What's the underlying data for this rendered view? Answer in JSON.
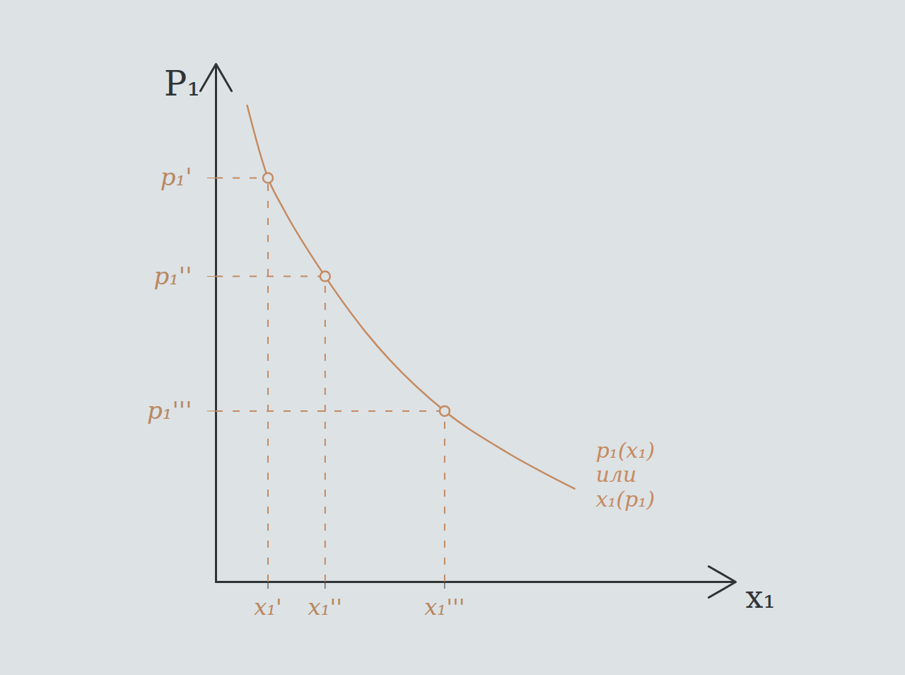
{
  "chart_data": {
    "type": "line",
    "x_label": "x₁",
    "y_label": "P₁",
    "xlim": [
      0,
      10
    ],
    "ylim": [
      0,
      10
    ],
    "xticks": [
      {
        "value": 1.0,
        "label": "x₁'"
      },
      {
        "value": 2.1,
        "label": "x₁''"
      },
      {
        "value": 4.4,
        "label": "x₁'''"
      }
    ],
    "yticks": [
      {
        "value": 7.8,
        "label": "p₁'"
      },
      {
        "value": 5.9,
        "label": "p₁''"
      },
      {
        "value": 3.3,
        "label": "p₁'''"
      }
    ],
    "grid": false,
    "annotation": [
      "p₁(x₁)",
      "или",
      "x₁(p₁)"
    ],
    "series": [
      {
        "type": "line",
        "color": "#c58a60",
        "line_style": "solid",
        "marker": "none",
        "x": [
          0.6,
          1.0,
          1.3,
          2.1,
          2.9,
          4.4,
          5.6,
          6.9
        ],
        "values": [
          9.2,
          7.8,
          7.2,
          5.9,
          4.8,
          3.3,
          2.5,
          1.8
        ]
      },
      {
        "type": "scatter",
        "color": "#c58a60",
        "marker": "circle-open",
        "x": [
          1.0,
          2.1,
          4.4
        ],
        "values": [
          7.8,
          5.9,
          3.3
        ]
      }
    ]
  }
}
